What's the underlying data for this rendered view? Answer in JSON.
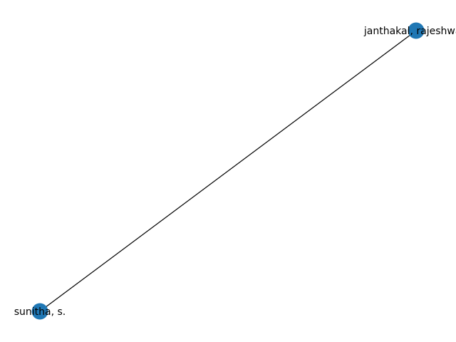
{
  "graph": {
    "nodes": [
      {
        "id": "n1",
        "label": "janthakal, rajeshwari"
      },
      {
        "id": "n2",
        "label": "sunitha, s."
      }
    ],
    "edges": [
      {
        "source": "n1",
        "target": "n2"
      }
    ],
    "node_color": "#1f77b4",
    "edge_color": "#000000",
    "label_color": "#000000",
    "background": "#ffffff"
  }
}
